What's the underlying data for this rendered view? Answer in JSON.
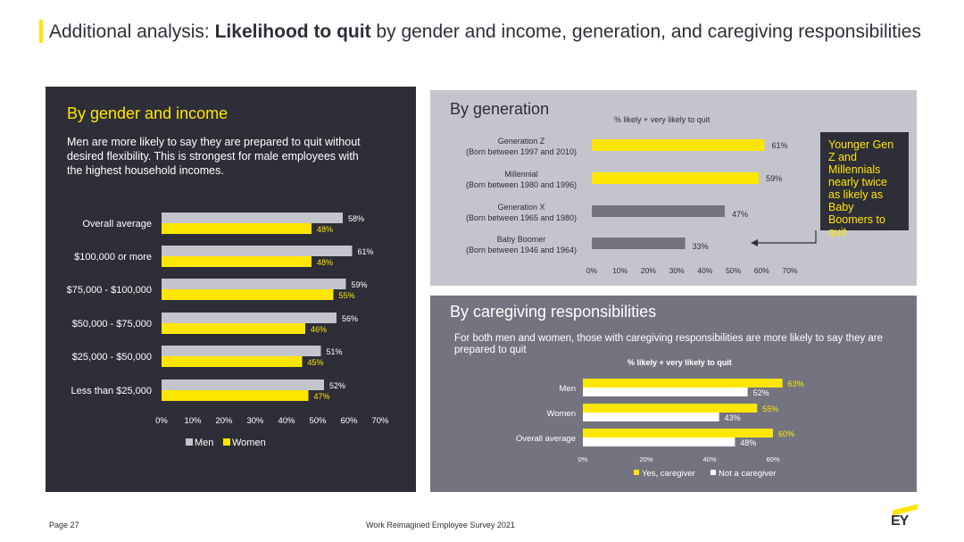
{
  "title": {
    "prefix": "Additional analysis: ",
    "bold": "Likelihood to quit",
    "suffix": " by gender and income, generation, and caregiving responsibilities"
  },
  "colors": {
    "yellow": "#ffe600",
    "dark": "#2e2e38",
    "grey_bar": "#c4c4cd",
    "gen_grey_bar": "#747480",
    "white": "#ffffff"
  },
  "gender_income": {
    "heading": "By gender and income",
    "intro": "Men are more likely to say they are prepared to quit without desired flexibility. This is strongest for male employees with the highest household incomes.",
    "chart_label": ""
  },
  "generation": {
    "heading": "By generation",
    "chart_label": "% likely + very likely to quit",
    "callout": "Younger Gen Z and Millennials nearly twice as likely as Baby Boomers to quit"
  },
  "caregiving": {
    "heading": "By caregiving responsibilities",
    "intro": "For both men and women, those with caregiving responsibilities are more likely to say they are prepared to quit",
    "chart_label": "% likely + very likely to quit"
  },
  "footer": {
    "page": "Page 27",
    "survey": "Work Reimagined Employee Survey 2021",
    "logo_text": "EY"
  },
  "chart_data": [
    {
      "type": "bar",
      "orientation": "horizontal",
      "categories": [
        "Overall average",
        "$100,000 or more",
        "$75,000 - $100,000",
        "$50,000 - $75,000",
        "$25,000 - $50,000",
        "Less than $25,000"
      ],
      "series": [
        {
          "name": "Men",
          "values": [
            58,
            61,
            59,
            56,
            51,
            52
          ],
          "color": "#c4c4cd",
          "labels": [
            "58%",
            "61%",
            "59%",
            "56%",
            "51%",
            "52%"
          ]
        },
        {
          "name": "Women",
          "values": [
            48,
            48,
            55,
            46,
            45,
            47
          ],
          "color": "#ffe600",
          "labels": [
            "48%",
            "48%",
            "55%",
            "46%",
            "45%",
            "47%"
          ]
        }
      ],
      "xlim": [
        0,
        70
      ],
      "xticks": [
        "0%",
        "10%",
        "20%",
        "30%",
        "40%",
        "50%",
        "60%",
        "70%"
      ],
      "legend": "bottom"
    },
    {
      "type": "bar",
      "orientation": "horizontal",
      "categories": [
        [
          "Generation Z",
          "(Born between 1997 and 2010)"
        ],
        [
          "Millennial",
          "(Born between 1980 and 1996)"
        ],
        [
          "Generation X",
          "(Born between 1965 and 1980)"
        ],
        [
          "Baby Boomer",
          "(Born between 1946 and 1964)"
        ]
      ],
      "values": [
        61,
        59,
        47,
        33
      ],
      "labels": [
        "61%",
        "59%",
        "47%",
        "33%"
      ],
      "colors": [
        "#ffe600",
        "#ffe600",
        "#747480",
        "#747480"
      ],
      "xlim": [
        0,
        70
      ],
      "xticks": [
        "0%",
        "10%",
        "20%",
        "30%",
        "40%",
        "50%",
        "60%",
        "70%"
      ]
    },
    {
      "type": "bar",
      "orientation": "horizontal",
      "categories": [
        "Men",
        "Women",
        "Overall average"
      ],
      "series": [
        {
          "name": "Yes, caregiver",
          "values": [
            63,
            55,
            60
          ],
          "color": "#ffe600",
          "labels": [
            "63%",
            "55%",
            "60%"
          ]
        },
        {
          "name": "Not a caregiver",
          "values": [
            52,
            43,
            48
          ],
          "color": "#ffffff",
          "labels": [
            "52%",
            "43%",
            "48%"
          ]
        }
      ],
      "xlim": [
        0,
        60
      ],
      "xticks": [
        "0%",
        "20%",
        "40%",
        "60%"
      ],
      "legend": "bottom"
    }
  ]
}
